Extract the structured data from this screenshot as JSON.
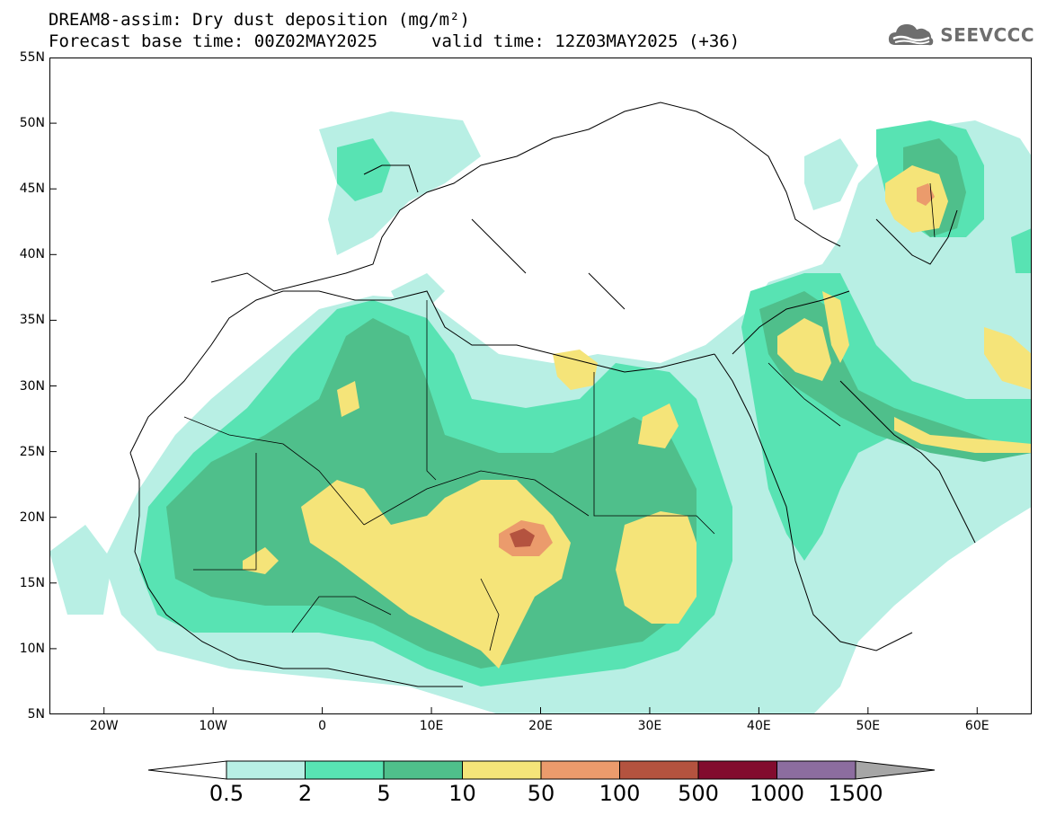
{
  "header": {
    "title_line1": "DREAM8-assim: Dry dust deposition (mg/m²)",
    "title_line2": "Forecast base time: 00Z02MAY2025",
    "valid_time": "valid time: 12Z03MAY2025 (+36)"
  },
  "logo": {
    "text": "SEEVCCC",
    "icon": "cloud-icon"
  },
  "map": {
    "lat_labels": [
      "55N",
      "50N",
      "45N",
      "40N",
      "35N",
      "30N",
      "25N",
      "20N",
      "15N",
      "10N",
      "5N"
    ],
    "lon_labels": [
      "20W",
      "10W",
      "0",
      "10E",
      "20E",
      "30E",
      "40E",
      "50E",
      "60E"
    ],
    "lon_range": [
      -25,
      65
    ],
    "lat_range": [
      5,
      55
    ]
  },
  "legend": {
    "labels": [
      "0.5",
      "2",
      "5",
      "10",
      "50",
      "100",
      "500",
      "1000",
      "1500"
    ],
    "colors": [
      "#ffffff",
      "#b8efe4",
      "#58e3b3",
      "#4fbf8b",
      "#f5e479",
      "#eb9b6c",
      "#b4533f",
      "#820c2e",
      "#8c6d9f",
      "#a6a6a6"
    ]
  },
  "colors": {
    "c1": "#b8efe4",
    "c2": "#58e3b3",
    "c3": "#4fbf8b",
    "c4": "#f5e479",
    "c5": "#eb9b6c",
    "c6": "#b4533f"
  }
}
